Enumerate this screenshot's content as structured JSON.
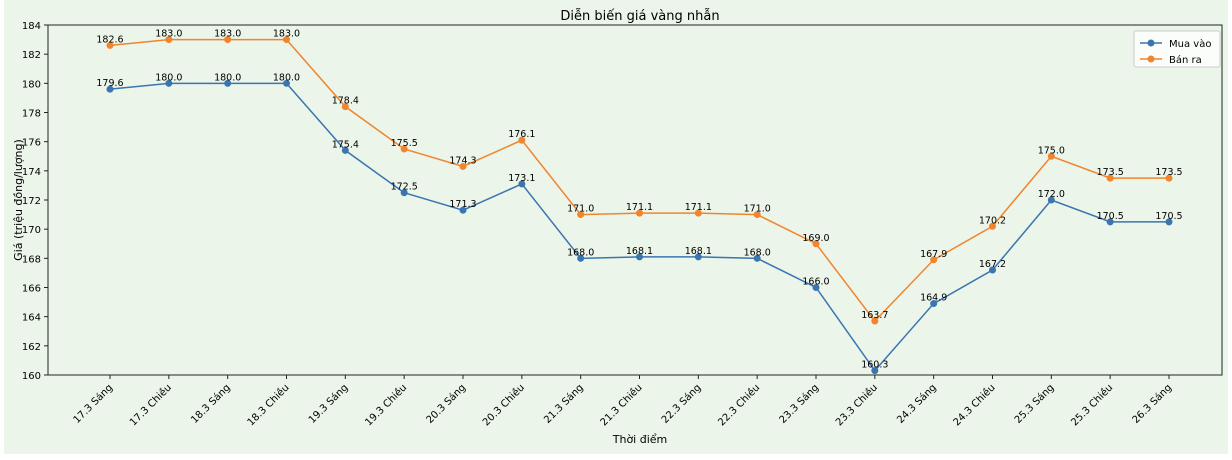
{
  "chart_data": {
    "type": "line",
    "title": "Diễn biến giá vàng nhẫn",
    "xlabel": "Thời điểm",
    "ylabel": "Giá (triệu đồng/lượng)",
    "ylim": [
      160,
      184
    ],
    "yticks": [
      160,
      162,
      164,
      166,
      168,
      170,
      172,
      174,
      176,
      178,
      180,
      182,
      184
    ],
    "grid": false,
    "legend_position": "top-right",
    "categories": [
      "17.3 Sáng",
      "17.3 Chiều",
      "18.3 Sáng",
      "18.3 Chiều",
      "19.3 Sáng",
      "19.3 Chiều",
      "20.3 Sáng",
      "20.3 Chiều",
      "21.3 Sáng",
      "21.3 Chiều",
      "22.3 Sáng",
      "22.3 Chiều",
      "23.3 Sáng",
      "23.3 Chiều",
      "24.3 Sáng",
      "24.3 Chiều",
      "25.3 Sáng",
      "25.3 Chiều",
      "26.3 Sáng"
    ],
    "series": [
      {
        "name": "Mua vào",
        "color": "#3a75b0",
        "values": [
          179.6,
          180.0,
          180.0,
          180.0,
          175.4,
          172.5,
          171.3,
          173.1,
          168.0,
          168.1,
          168.1,
          168.0,
          166.0,
          160.3,
          164.9,
          167.2,
          172.0,
          170.5,
          170.5
        ]
      },
      {
        "name": "Bán ra",
        "color": "#f0852d",
        "values": [
          182.6,
          183.0,
          183.0,
          183.0,
          178.4,
          175.5,
          174.3,
          176.1,
          171.0,
          171.1,
          171.1,
          171.0,
          169.0,
          163.7,
          167.9,
          170.2,
          175.0,
          173.5,
          173.5
        ]
      }
    ]
  }
}
